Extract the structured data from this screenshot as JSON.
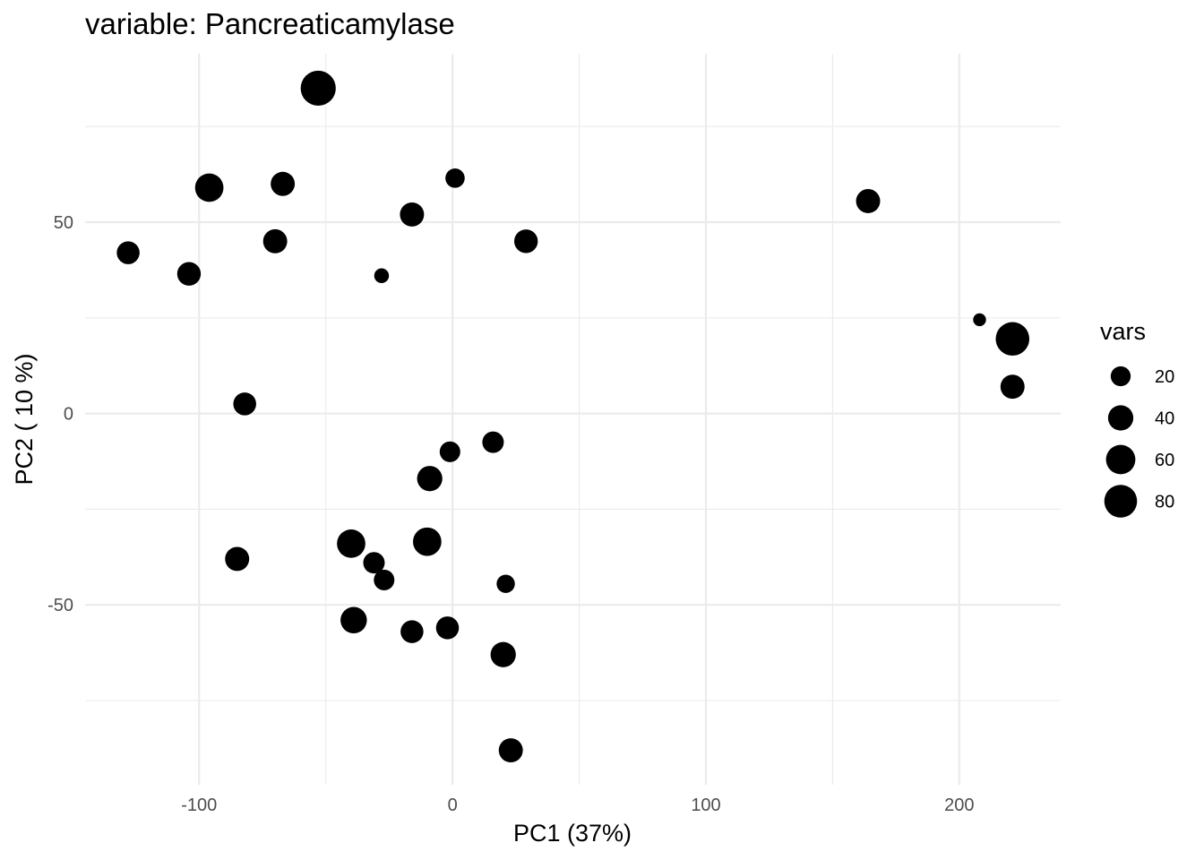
{
  "chart_data": {
    "type": "scatter",
    "title": "variable: Pancreaticamylase",
    "xlabel": "PC1 (37%)",
    "ylabel": "PC2 ( 10 %)",
    "xlim": [
      -145,
      240
    ],
    "ylim": [
      -97,
      94
    ],
    "xticks": [
      -100,
      0,
      100,
      200
    ],
    "xtick_labels": [
      "-100",
      "0",
      "100",
      "200"
    ],
    "yticks": [
      -50,
      0,
      50
    ],
    "ytick_labels": [
      "-50",
      "0",
      "50"
    ],
    "grid": true,
    "point_color": "#000000",
    "size_legend": {
      "title": "vars",
      "placement": "right",
      "entries": [
        {
          "label": "20",
          "value": 20
        },
        {
          "label": "40",
          "value": 40
        },
        {
          "label": "60",
          "value": 60
        },
        {
          "label": "80",
          "value": 80
        }
      ]
    },
    "points": [
      {
        "x": -53,
        "y": 85,
        "vars": 95
      },
      {
        "x": -96,
        "y": 59,
        "vars": 55
      },
      {
        "x": -67,
        "y": 60,
        "vars": 35
      },
      {
        "x": 1,
        "y": 61.5,
        "vars": 18
      },
      {
        "x": -16,
        "y": 52,
        "vars": 35
      },
      {
        "x": -128,
        "y": 42,
        "vars": 30
      },
      {
        "x": -70,
        "y": 45,
        "vars": 35
      },
      {
        "x": -104,
        "y": 36.5,
        "vars": 33
      },
      {
        "x": -28,
        "y": 36,
        "vars": 7
      },
      {
        "x": 29,
        "y": 45,
        "vars": 33
      },
      {
        "x": 164,
        "y": 55.5,
        "vars": 35
      },
      {
        "x": 208,
        "y": 24.5,
        "vars": 4
      },
      {
        "x": 221,
        "y": 19.5,
        "vars": 85
      },
      {
        "x": 221,
        "y": 7,
        "vars": 35
      },
      {
        "x": -82,
        "y": 2.5,
        "vars": 30
      },
      {
        "x": -1,
        "y": -10,
        "vars": 22
      },
      {
        "x": 16,
        "y": -7.5,
        "vars": 25
      },
      {
        "x": -9,
        "y": -17,
        "vars": 40
      },
      {
        "x": -40,
        "y": -34,
        "vars": 55
      },
      {
        "x": -10,
        "y": -33.5,
        "vars": 55
      },
      {
        "x": -31,
        "y": -39,
        "vars": 25
      },
      {
        "x": -85,
        "y": -38,
        "vars": 35
      },
      {
        "x": -27,
        "y": -43.5,
        "vars": 22
      },
      {
        "x": 21,
        "y": -44.5,
        "vars": 15
      },
      {
        "x": -39,
        "y": -54,
        "vars": 45
      },
      {
        "x": -16,
        "y": -57,
        "vars": 30
      },
      {
        "x": -2,
        "y": -56,
        "vars": 30
      },
      {
        "x": 20,
        "y": -63,
        "vars": 40
      },
      {
        "x": 23,
        "y": -88,
        "vars": 35
      }
    ]
  }
}
